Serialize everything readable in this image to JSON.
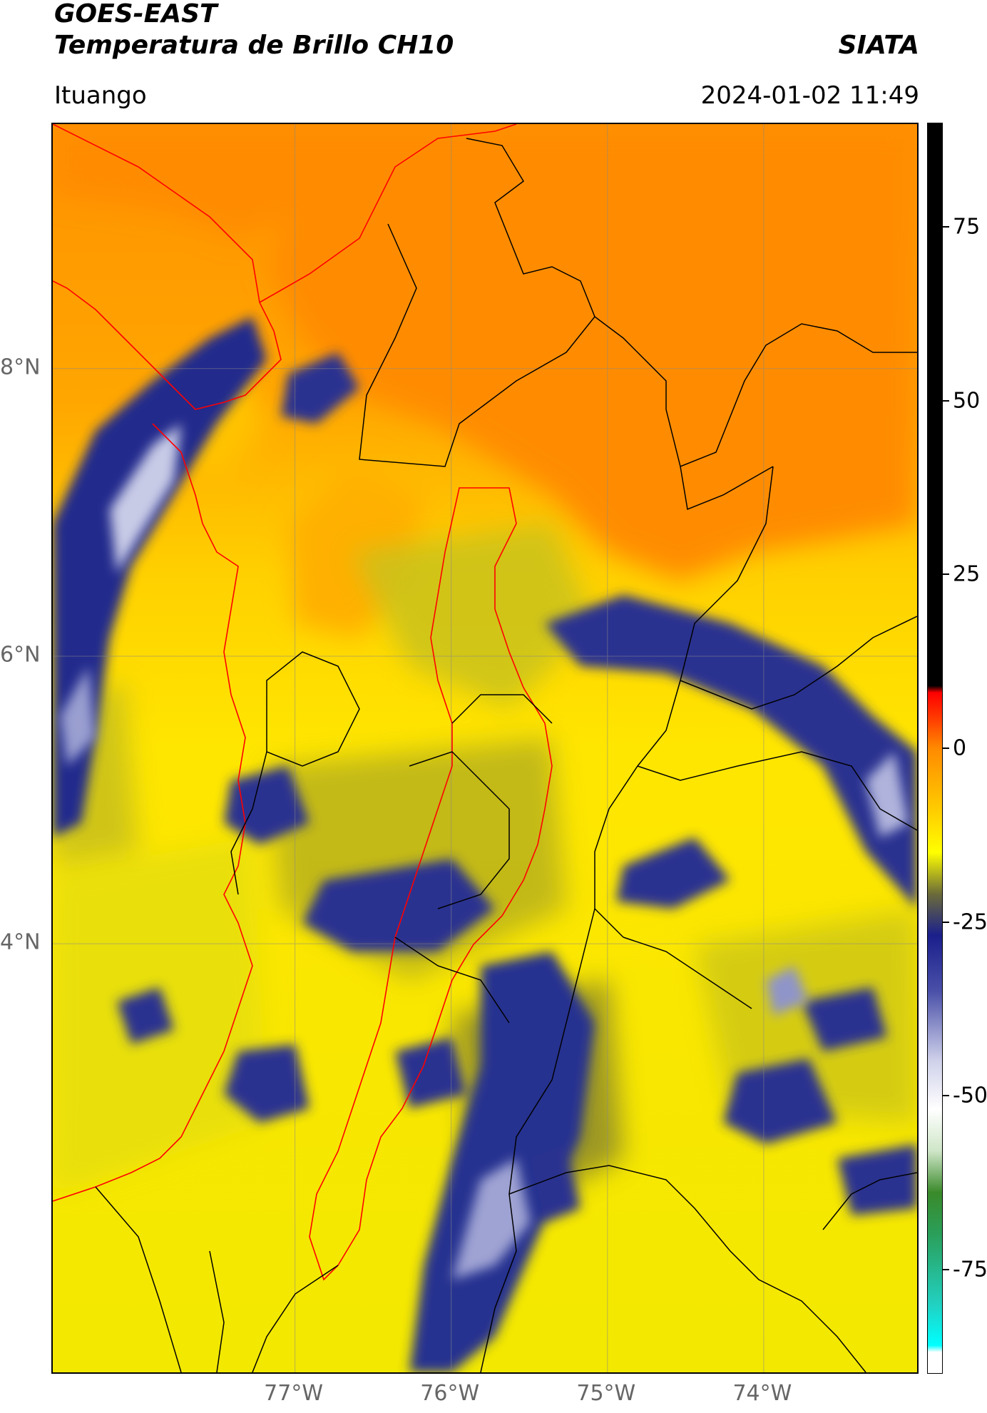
{
  "header": {
    "title_line1": "GOES-EAST",
    "title_line2": "Temperatura de Brillo CH10",
    "organization": "SIATA",
    "location": "Ituango",
    "timestamp": "2024-01-02 11:49"
  },
  "map": {
    "lon_range": [
      -78.55,
      -73.0
    ],
    "lat_range": [
      1.0,
      9.7
    ],
    "lon_ticks": [
      {
        "value": -77,
        "label": "77°W"
      },
      {
        "value": -76,
        "label": "76°W"
      },
      {
        "value": -75,
        "label": "75°W"
      },
      {
        "value": -74,
        "label": "74°W"
      }
    ],
    "lat_ticks": [
      {
        "value": 8,
        "label": "8°N"
      },
      {
        "value": 6,
        "label": "6°N"
      },
      {
        "value": 4,
        "label": "4°N"
      }
    ],
    "gridlines": true,
    "colors": {
      "cold_cloud": "#232a8c",
      "warm_land": "#f6e400",
      "warmer": "#ff9a00",
      "border_red": "#ff0000",
      "border_black": "#000000"
    }
  },
  "colorbar": {
    "range": [
      -90,
      90
    ],
    "ticks": [
      {
        "value": 75,
        "label": "75"
      },
      {
        "value": 50,
        "label": "50"
      },
      {
        "value": 25,
        "label": "25"
      },
      {
        "value": 0,
        "label": "0"
      },
      {
        "value": -25,
        "label": "-25"
      },
      {
        "value": -50,
        "label": "-50"
      },
      {
        "value": -75,
        "label": "-75"
      }
    ],
    "stops": [
      {
        "value": 90,
        "color": "#000000"
      },
      {
        "value": 9,
        "color": "#000000"
      },
      {
        "value": 8,
        "color": "#ff0000"
      },
      {
        "value": 4,
        "color": "#ff4000"
      },
      {
        "value": 0,
        "color": "#ff8a00"
      },
      {
        "value": -10,
        "color": "#ffd500"
      },
      {
        "value": -15,
        "color": "#ffff00"
      },
      {
        "value": -21,
        "color": "#6b6b3a"
      },
      {
        "value": -27,
        "color": "#1a1f8c"
      },
      {
        "value": -35,
        "color": "#4a50a8"
      },
      {
        "value": -45,
        "color": "#cfd1ea"
      },
      {
        "value": -52,
        "color": "#ffffff"
      },
      {
        "value": -58,
        "color": "#cfe6c8"
      },
      {
        "value": -64,
        "color": "#3a8a2a"
      },
      {
        "value": -70,
        "color": "#2a9f5a"
      },
      {
        "value": -80,
        "color": "#22d0c0"
      },
      {
        "value": -86,
        "color": "#00ffff"
      },
      {
        "value": -87,
        "color": "#ffffff"
      },
      {
        "value": -90,
        "color": "#ffffff"
      }
    ]
  }
}
